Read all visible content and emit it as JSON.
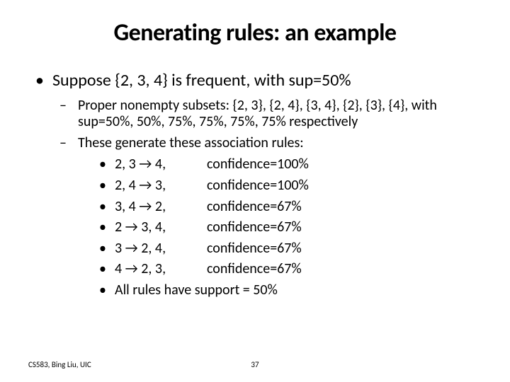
{
  "title": "Generating rules: an example",
  "lvl1_text": "Suppose {2, 3, 4} is frequent, with sup=50%",
  "lvl2_a": "Proper nonempty subsets: {2, 3}, {2, 4}, {3, 4}, {2}, {3}, {4}, with sup=50%, 50%, 75%, 75%, 75%, 75% respectively",
  "lvl2_b": "These generate these association rules:",
  "rules": [
    {
      "lhs": "2, 3 → 4,",
      "conf": "confidence=100%"
    },
    {
      "lhs": "2, 4 → 3,",
      "conf": "confidence=100%"
    },
    {
      "lhs": "3, 4 → 2,",
      "conf": "confidence=67%"
    },
    {
      "lhs": "2 → 3, 4,",
      "conf": "confidence=67%"
    },
    {
      "lhs": "3 → 2, 4,",
      "conf": "confidence=67%"
    },
    {
      "lhs": "4 → 2, 3,",
      "conf": "confidence=67%"
    }
  ],
  "rules_footer": "All rules have support = 50%",
  "footer_left": "CS583, Bing Liu, UIC",
  "page_number": "37"
}
